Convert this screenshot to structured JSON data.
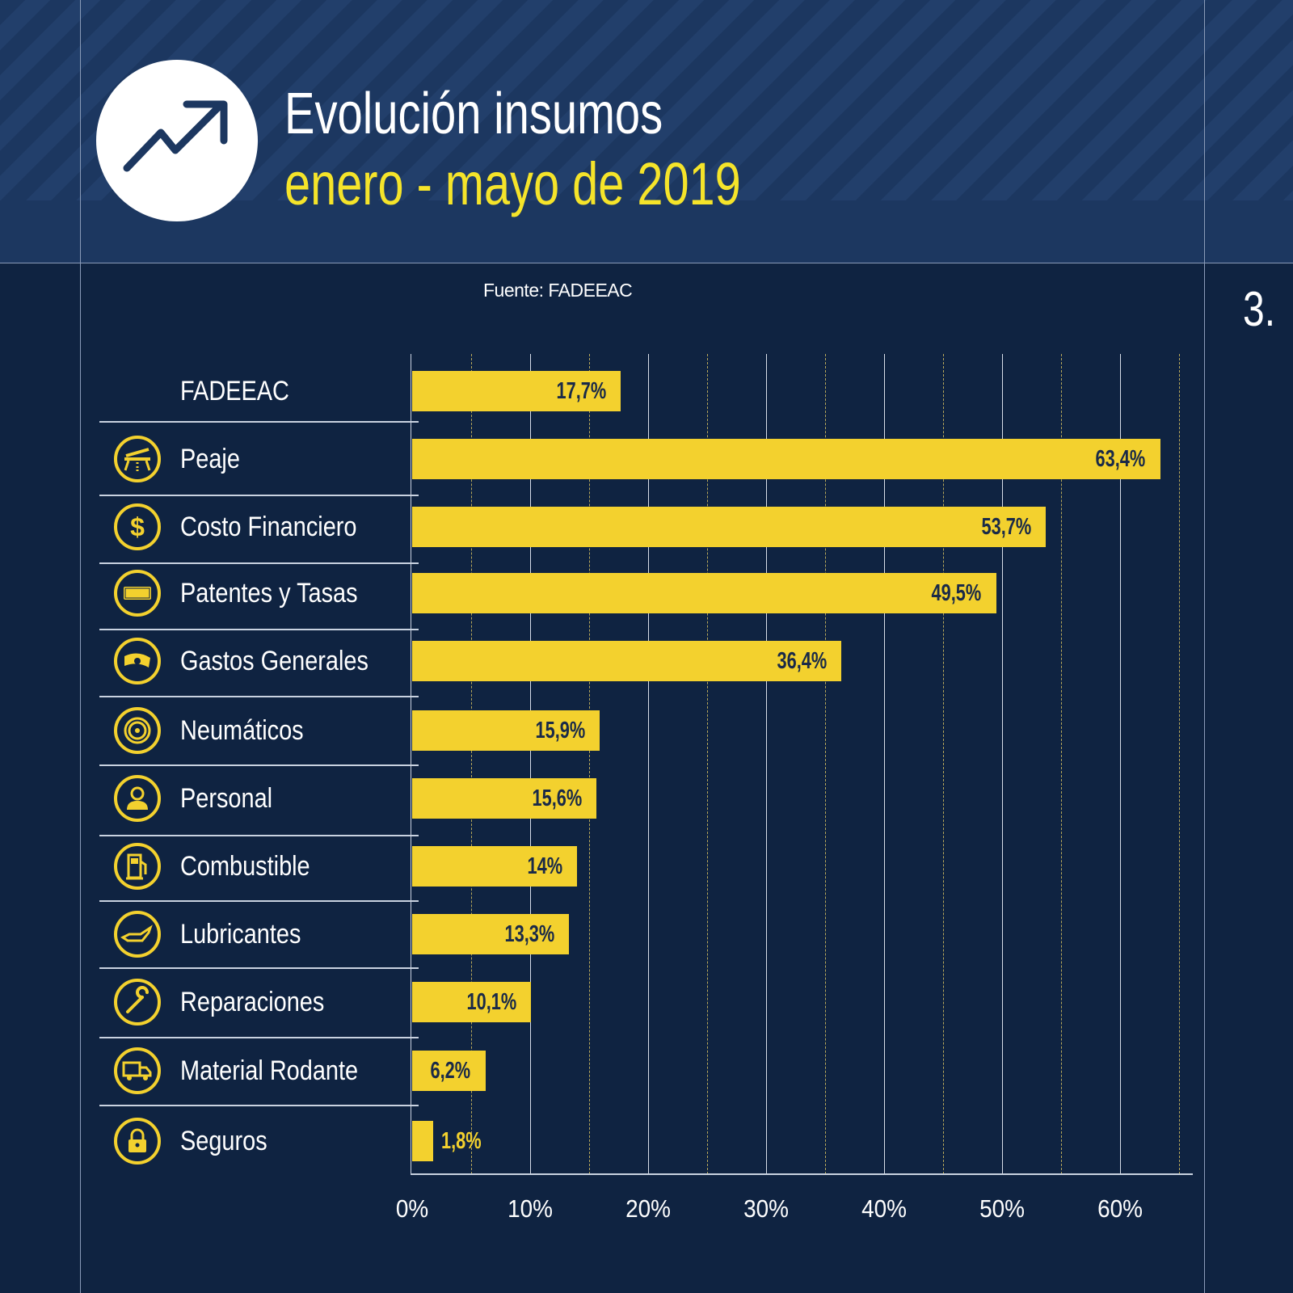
{
  "header": {
    "title": "Evolución insumos",
    "subtitle": "enero - mayo de 2019",
    "icon": "trending-up-arrow-icon"
  },
  "source": "Fuente: FADEEAC",
  "page_number": "3.",
  "colors": {
    "bar": "#f3d12e",
    "background": "#0f2341",
    "header": "#1c3760",
    "subtitle": "#f5e42a"
  },
  "chart_data": {
    "type": "bar",
    "orientation": "horizontal",
    "categories": [
      "FADEEAC",
      "Peaje",
      "Costo Financiero",
      "Patentes y Tasas",
      "Gastos Generales",
      "Neumáticos",
      "Personal",
      "Combustible",
      "Lubricantes",
      "Reparaciones",
      "Material Rodante",
      "Seguros"
    ],
    "icons": [
      "",
      "toll-barrier-icon",
      "dollar-icon",
      "license-plate-icon",
      "banknote-icon",
      "tire-icon",
      "person-icon",
      "fuel-pump-icon",
      "oil-can-icon",
      "wrench-icon",
      "truck-icon",
      "lock-icon"
    ],
    "values": [
      17.7,
      63.4,
      53.7,
      49.5,
      36.4,
      15.9,
      15.6,
      14,
      13.3,
      10.1,
      6.2,
      1.8
    ],
    "data_labels": [
      "17,7%",
      "63,4%",
      "53,7%",
      "49,5%",
      "36,4%",
      "15,9%",
      "15,6%",
      "14%",
      "13,3%",
      "10,1%",
      "6,2%",
      "1,8%"
    ],
    "xlim": [
      0,
      65
    ],
    "x_ticks": [
      0,
      10,
      20,
      30,
      40,
      50,
      60
    ],
    "x_tick_labels": [
      "0%",
      "10%",
      "20%",
      "30%",
      "40%",
      "50%",
      "60%"
    ],
    "grid": true
  }
}
